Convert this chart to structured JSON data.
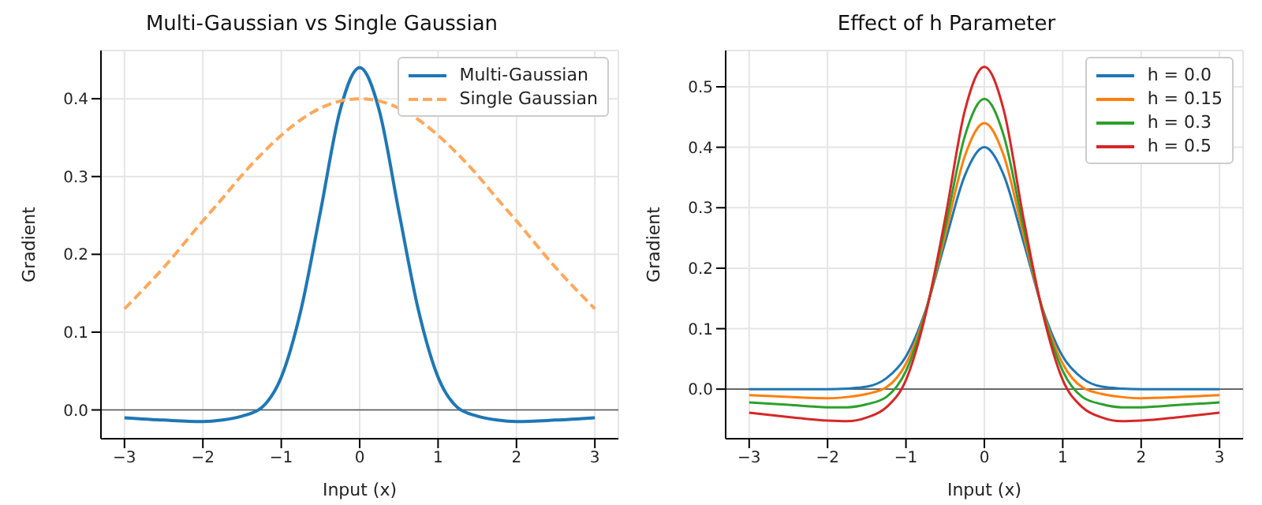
{
  "chart_data": [
    {
      "type": "line",
      "title": "Multi-Gaussian vs Single Gaussian",
      "xlabel": "Input (x)",
      "ylabel": "Gradient",
      "x": [
        -3,
        -2.5,
        -2,
        -1.75,
        -1.5,
        -1.25,
        -1,
        -0.75,
        -0.5,
        -0.25,
        0,
        0.25,
        0.5,
        0.75,
        1,
        1.25,
        1.5,
        1.75,
        2,
        2.5,
        3
      ],
      "series": [
        {
          "name": "Multi-Gaussian",
          "color": "#1f77b4",
          "line_style": "solid",
          "values": [
            -0.01,
            -0.013,
            -0.015,
            -0.013,
            -0.008,
            0.003,
            0.042,
            0.128,
            0.255,
            0.385,
            0.44,
            0.385,
            0.255,
            0.128,
            0.042,
            0.003,
            -0.008,
            -0.013,
            -0.015,
            -0.013,
            -0.01
          ]
        },
        {
          "name": "Single Gaussian",
          "color": "#ffa85c",
          "line_style": "dashed",
          "values": [
            0.13,
            0.183,
            0.243,
            0.272,
            0.302,
            0.329,
            0.353,
            0.373,
            0.388,
            0.397,
            0.4,
            0.397,
            0.388,
            0.373,
            0.353,
            0.329,
            0.302,
            0.272,
            0.243,
            0.183,
            0.13
          ]
        }
      ],
      "xlim": [
        -3.3,
        3.3
      ],
      "xticks": [
        -3,
        -2,
        -1,
        0,
        1,
        2,
        3
      ],
      "ylim": [
        -0.037,
        0.462
      ],
      "yticks": [
        {
          "value": 0,
          "label": "0.0"
        },
        {
          "value": 0.1,
          "label": "0.1"
        },
        {
          "value": 0.2,
          "label": "0.2"
        },
        {
          "value": 0.3,
          "label": "0.3"
        },
        {
          "value": 0.4,
          "label": "0.4"
        }
      ],
      "ref_lines": [
        {
          "axis": "y",
          "value": 0,
          "color": "#555555"
        }
      ],
      "grid": true,
      "legend": "top right",
      "marker": "none"
    },
    {
      "type": "line",
      "title": "Effect of h Parameter",
      "xlabel": "Input (x)",
      "ylabel": "Gradient",
      "x": [
        -3,
        -2.5,
        -2,
        -1.75,
        -1.5,
        -1.25,
        -1,
        -0.75,
        -0.5,
        -0.25,
        0,
        0.25,
        0.5,
        0.75,
        1,
        1.25,
        1.5,
        1.75,
        2,
        2.5,
        3
      ],
      "series": [
        {
          "name": "h = 0.0",
          "color": "#1f77b4",
          "values": [
            0,
            0,
            0,
            0.001,
            0.004,
            0.018,
            0.054,
            0.13,
            0.243,
            0.353,
            0.4,
            0.353,
            0.243,
            0.13,
            0.054,
            0.018,
            0.004,
            0.001,
            0,
            0,
            0
          ]
        },
        {
          "name": "h = 0.15",
          "color": "#ff7f0e",
          "values": [
            -0.01,
            -0.013,
            -0.015,
            -0.013,
            -0.008,
            0.003,
            0.042,
            0.128,
            0.255,
            0.385,
            0.44,
            0.385,
            0.255,
            0.128,
            0.042,
            0.003,
            -0.008,
            -0.013,
            -0.015,
            -0.013,
            -0.01
          ]
        },
        {
          "name": "h = 0.3",
          "color": "#2ca02c",
          "values": [
            -0.022,
            -0.026,
            -0.03,
            -0.03,
            -0.025,
            -0.013,
            0.03,
            0.126,
            0.267,
            0.418,
            0.48,
            0.418,
            0.267,
            0.126,
            0.03,
            -0.013,
            -0.025,
            -0.03,
            -0.03,
            -0.026,
            -0.022
          ]
        },
        {
          "name": "h = 0.5",
          "color": "#d62728",
          "values": [
            -0.039,
            -0.046,
            -0.052,
            -0.053,
            -0.047,
            -0.03,
            0.015,
            0.123,
            0.282,
            0.46,
            0.533,
            0.46,
            0.282,
            0.123,
            0.015,
            -0.03,
            -0.047,
            -0.053,
            -0.052,
            -0.046,
            -0.039
          ]
        }
      ],
      "xlim": [
        -3.3,
        3.3
      ],
      "xticks": [
        -3,
        -2,
        -1,
        0,
        1,
        2,
        3
      ],
      "ylim": [
        -0.082,
        0.56
      ],
      "yticks": [
        {
          "value": 0,
          "label": "0.0"
        },
        {
          "value": 0.1,
          "label": "0.1"
        },
        {
          "value": 0.2,
          "label": "0.2"
        },
        {
          "value": 0.3,
          "label": "0.3"
        },
        {
          "value": 0.4,
          "label": "0.4"
        },
        {
          "value": 0.5,
          "label": "0.5"
        }
      ],
      "ref_lines": [
        {
          "axis": "y",
          "value": 0,
          "color": "#555555"
        }
      ],
      "grid": true,
      "legend": "top right",
      "marker": "none"
    }
  ]
}
